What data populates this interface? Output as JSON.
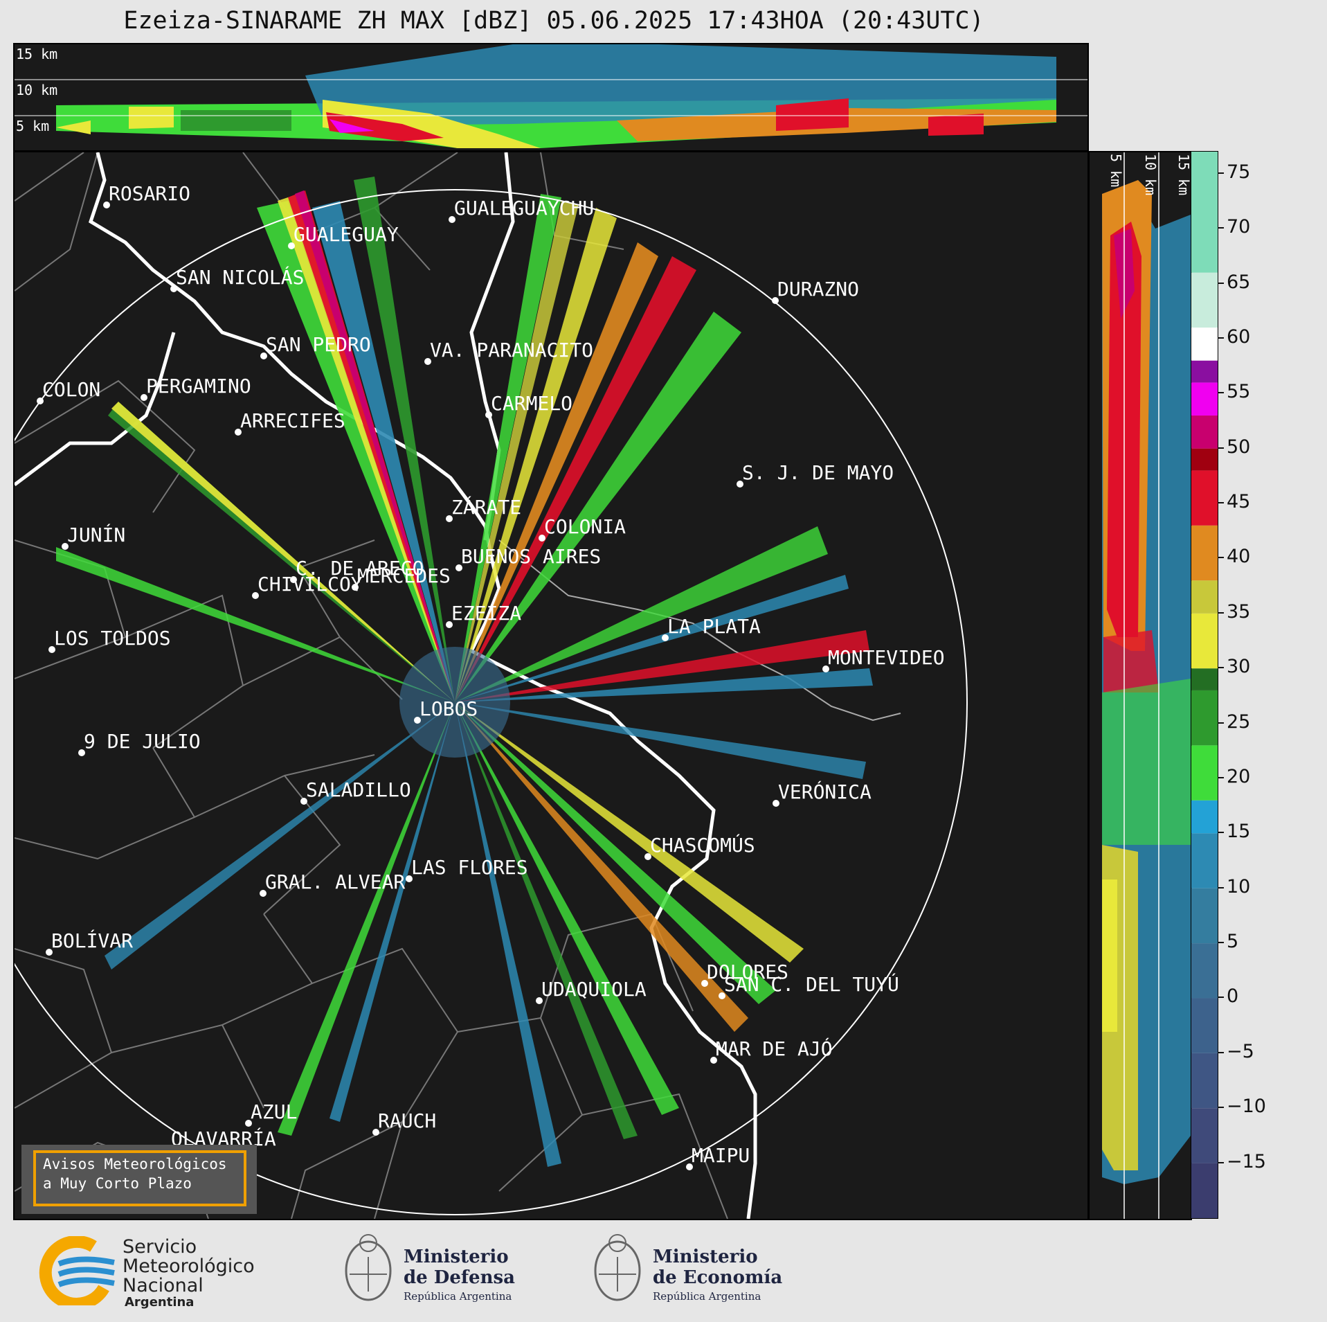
{
  "title": "Ezeiza-SINARAME ZH MAX [dBZ] 05.06.2025 17:43HOA (20:43UTC)",
  "height_labels_top": [
    "15 km",
    "10 km",
    "5 km"
  ],
  "height_labels_side": [
    "5 km",
    "10 km",
    "15 km"
  ],
  "colorbar": {
    "ticks": [
      "75",
      "70",
      "65",
      "60",
      "55",
      "50",
      "45",
      "40",
      "35",
      "30",
      "25",
      "20",
      "15",
      "10",
      "5",
      "0",
      "−5",
      "−10",
      "−15"
    ],
    "range": [
      -20,
      77
    ],
    "bands": [
      {
        "from": -20,
        "to": -15,
        "color": "#3b3d6e"
      },
      {
        "from": -15,
        "to": -10,
        "color": "#3f4a7a"
      },
      {
        "from": -10,
        "to": -5,
        "color": "#3f5684"
      },
      {
        "from": -5,
        "to": 0,
        "color": "#3d628c"
      },
      {
        "from": 0,
        "to": 5,
        "color": "#3a6f95"
      },
      {
        "from": 5,
        "to": 10,
        "color": "#347d9f"
      },
      {
        "from": 10,
        "to": 15,
        "color": "#2d8ab3"
      },
      {
        "from": 15,
        "to": 18,
        "color": "#23a2d6"
      },
      {
        "from": 18,
        "to": 23,
        "color": "#3fdc3a"
      },
      {
        "from": 23,
        "to": 28,
        "color": "#2e9a2e"
      },
      {
        "from": 28,
        "to": 30,
        "color": "#236e23"
      },
      {
        "from": 30,
        "to": 35,
        "color": "#e8e83a"
      },
      {
        "from": 35,
        "to": 38,
        "color": "#c8c83a"
      },
      {
        "from": 38,
        "to": 43,
        "color": "#e08a20"
      },
      {
        "from": 43,
        "to": 48,
        "color": "#e0102a"
      },
      {
        "from": 48,
        "to": 50,
        "color": "#a00010"
      },
      {
        "from": 50,
        "to": 53,
        "color": "#c8006e"
      },
      {
        "from": 53,
        "to": 56,
        "color": "#f000f0"
      },
      {
        "from": 56,
        "to": 58,
        "color": "#8a0fa0"
      },
      {
        "from": 58,
        "to": 61,
        "color": "#ffffff"
      },
      {
        "from": 61,
        "to": 66,
        "color": "#c8ecdc"
      },
      {
        "from": 66,
        "to": 77,
        "color": "#7edcb8"
      }
    ]
  },
  "cities": [
    {
      "name": "ROSARIO"
    },
    {
      "name": "GUALEGUAYCHU"
    },
    {
      "name": "GUALEGUAY"
    },
    {
      "name": "SAN NICOLÁS"
    },
    {
      "name": "DURAZNO"
    },
    {
      "name": "SAN PEDRO"
    },
    {
      "name": "VA. PARANACITO"
    },
    {
      "name": "COLON"
    },
    {
      "name": "PERGAMINO"
    },
    {
      "name": "CARMELO"
    },
    {
      "name": "ARRECIFES"
    },
    {
      "name": "ZÁRATE"
    },
    {
      "name": "S. J. DE MAYO"
    },
    {
      "name": "C. DE ARECO"
    },
    {
      "name": "COLONIA"
    },
    {
      "name": "JUNÍN"
    },
    {
      "name": "BUENOS AIRES"
    },
    {
      "name": "MERCEDES"
    },
    {
      "name": "EZEIZA"
    },
    {
      "name": "MONTEVIDEO"
    },
    {
      "name": "CHIVILCOY"
    },
    {
      "name": "LA PLATA"
    },
    {
      "name": "LOS TOLDOS"
    },
    {
      "name": "LOBOS"
    },
    {
      "name": "VERÓNICA"
    },
    {
      "name": "9 DE JULIO"
    },
    {
      "name": "CHASCOMÚS"
    },
    {
      "name": "SALADILLO"
    },
    {
      "name": "GRAL. ALVEAR"
    },
    {
      "name": "LAS FLORES"
    },
    {
      "name": "BOLÍVAR"
    },
    {
      "name": "DOLORES"
    },
    {
      "name": "SAN C. DEL TUYÚ"
    },
    {
      "name": "UDAQUIOLA"
    },
    {
      "name": "MAR DE AJÓ"
    },
    {
      "name": "AZUL"
    },
    {
      "name": "RAUCH"
    },
    {
      "name": "OLAVARRÍA"
    },
    {
      "name": "MAIPU"
    }
  ],
  "warning": {
    "line1": "Avisos Meteorológicos",
    "line2": "a Muy Corto Plazo"
  },
  "logos": {
    "smn": {
      "l1": "Servicio",
      "l2": "Meteorológico",
      "l3": "Nacional",
      "l4": "Argentina"
    },
    "defensa": {
      "l1": "Ministerio",
      "l2": "de Defensa",
      "l3": "República Argentina"
    },
    "economia": {
      "l1": "Ministerio",
      "l2": "de Economía",
      "l3": "República Argentina"
    }
  }
}
